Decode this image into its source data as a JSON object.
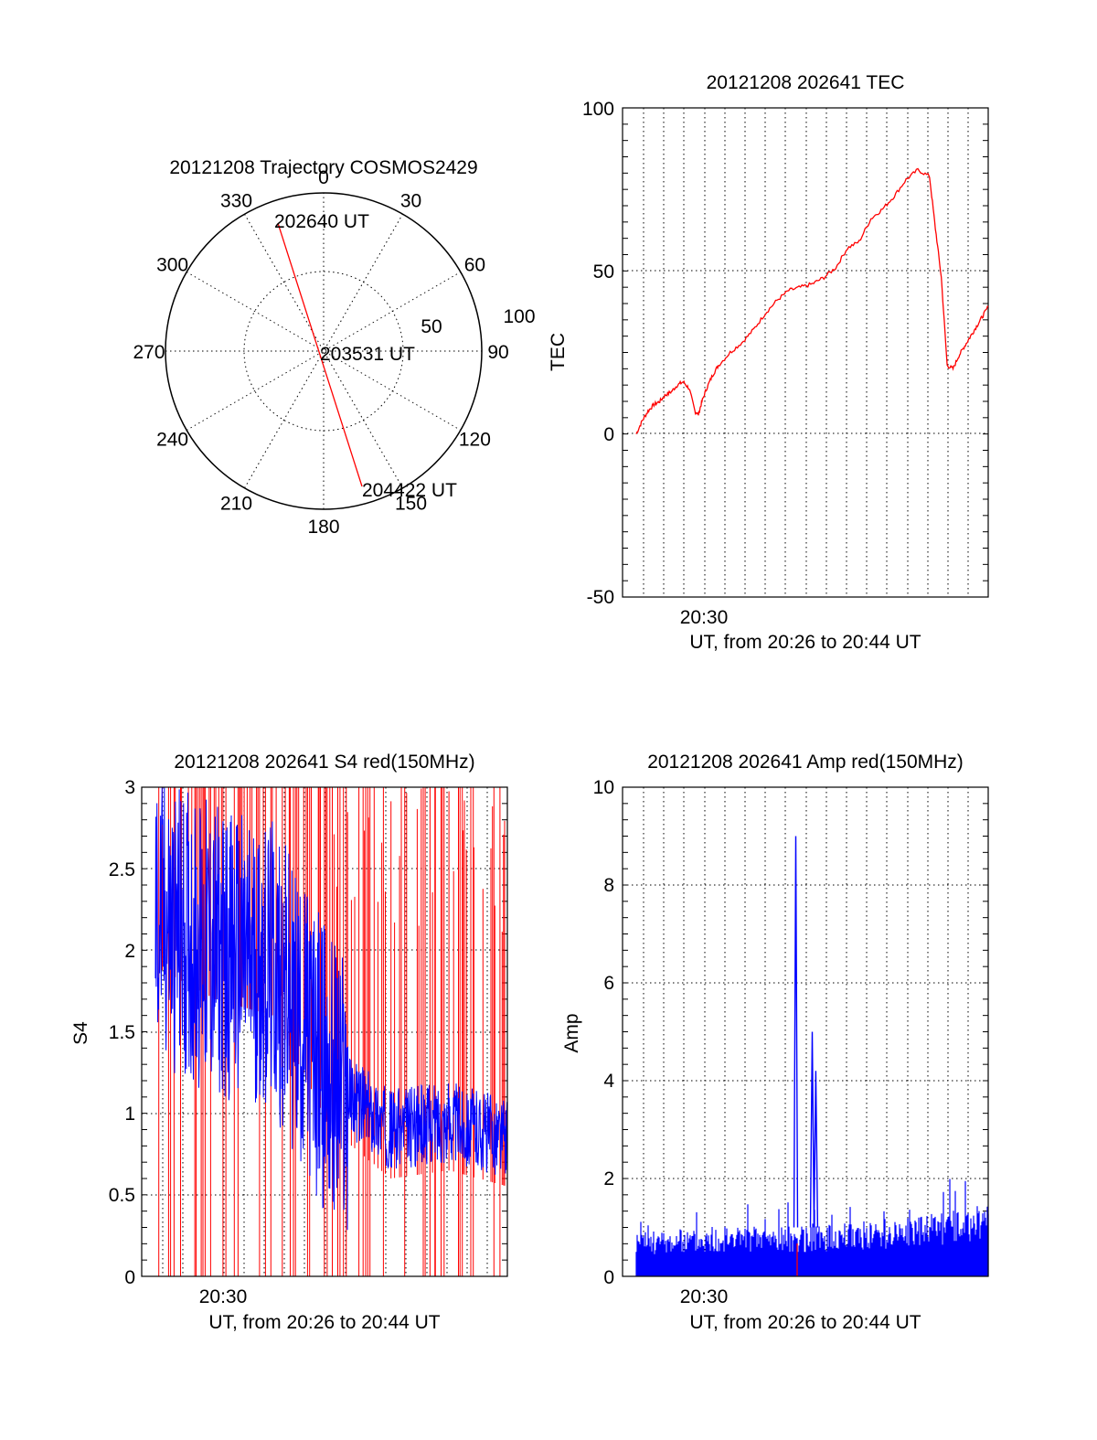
{
  "colors": {
    "red": "#ff0000",
    "blue": "#0000ff",
    "axis": "#000000"
  },
  "chart_data": [
    {
      "type": "polar",
      "title": "20121208 Trajectory COSMOS2429",
      "azimuth_labels": [
        "0",
        "30",
        "60",
        "90",
        "120",
        "150",
        "180",
        "210",
        "240",
        "270",
        "300",
        "330"
      ],
      "radius_labels": [
        "50",
        "100"
      ],
      "track_azimuth_start": 330,
      "track_azimuth_end": 160,
      "track_elev_start": 12,
      "track_elev_end": 12,
      "annotations": [
        "202640 UT",
        "203531 UT",
        "204422 UT"
      ]
    },
    {
      "type": "line",
      "title": "20121208 202641 TEC",
      "xlabel": "UT, from 20:26 to 20:44 UT",
      "ylabel": "TEC",
      "xtick_label": "20:30",
      "ytick_labels": [
        "100",
        "50",
        "0",
        "-50"
      ],
      "ylim": [
        -50,
        100
      ],
      "xlim_minutes": [
        20.45,
        20.75
      ],
      "series": [
        {
          "x": [
            20.45,
            20.455,
            20.46,
            20.465,
            20.47,
            20.475,
            20.48,
            20.485,
            20.49,
            20.495,
            20.5,
            20.503,
            20.506,
            20.51,
            20.515,
            20.52,
            20.53,
            20.54,
            20.55,
            20.56,
            20.57,
            20.58,
            20.59,
            20.6,
            20.61,
            20.62,
            20.63,
            20.64,
            20.65,
            20.66,
            20.67,
            20.68,
            20.69,
            20.7,
            20.705,
            20.71,
            20.715,
            20.72,
            20.725,
            20.73,
            20.735,
            20.74,
            20.745,
            20.75
          ],
          "y": [
            0,
            4,
            7,
            9,
            10,
            12,
            13,
            15,
            16,
            14,
            7,
            6,
            10,
            14,
            18,
            21,
            25,
            28,
            32,
            37,
            41,
            44,
            45,
            46,
            48,
            51,
            57,
            59,
            66,
            69,
            73,
            78,
            81,
            79,
            63,
            48,
            21,
            20,
            24,
            27,
            30,
            33,
            36,
            39
          ]
        }
      ]
    },
    {
      "type": "line",
      "title": "20121208 202641 S4 red(150MHz)",
      "xlabel": "UT, from 20:26 to 20:44 UT",
      "ylabel": "S4",
      "xtick_label": "20:30",
      "ytick_labels": [
        "3",
        "2.5",
        "2",
        "1.5",
        "1",
        "0.5",
        "0"
      ],
      "ylim": [
        0,
        3
      ],
      "series": [
        {
          "name": "",
          "values_desc": "",
          "trend": [
            [
              20.45,
              2.2
            ],
            [
              20.5,
              2.0
            ],
            [
              20.55,
              1.9
            ],
            [
              20.6,
              1.2
            ],
            [
              20.65,
              0.9
            ],
            [
              20.7,
              0.95
            ],
            [
              20.75,
              0.85
            ]
          ]
        }
      ]
    },
    {
      "type": "line",
      "title": "20121208 202641 Amp red(150MHz)",
      "xlabel": "UT, from 20:26 to 20:44 UT",
      "ylabel": "Amp",
      "xtick_label": "20:30",
      "ytick_labels": [
        "10",
        "8",
        "6",
        "4",
        "2",
        "0"
      ],
      "ylim": [
        0,
        10
      ],
      "series": [
        {
          "trend": [
            [
              20.45,
              0.8
            ],
            [
              20.55,
              0.9
            ],
            [
              20.6,
              0.9
            ],
            [
              20.65,
              1.0
            ],
            [
              20.7,
              1.1
            ],
            [
              20.75,
              1.3
            ]
          ],
          "peaks": [
            [
              20.586,
              9.0
            ],
            [
              20.6,
              5.0
            ],
            [
              20.603,
              4.2
            ]
          ]
        }
      ]
    }
  ]
}
